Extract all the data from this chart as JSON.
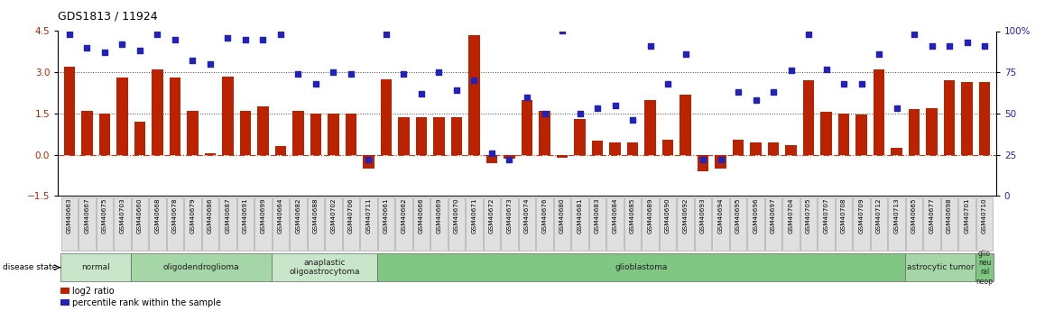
{
  "title": "GDS1813 / 11924",
  "samples": [
    "GSM40663",
    "GSM40667",
    "GSM40675",
    "GSM40703",
    "GSM40660",
    "GSM40668",
    "GSM40678",
    "GSM40679",
    "GSM40686",
    "GSM40687",
    "GSM40691",
    "GSM40699",
    "GSM40664",
    "GSM40682",
    "GSM40688",
    "GSM40702",
    "GSM40706",
    "GSM40711",
    "GSM40661",
    "GSM40662",
    "GSM40666",
    "GSM40669",
    "GSM40670",
    "GSM40671",
    "GSM40672",
    "GSM40673",
    "GSM40674",
    "GSM40676",
    "GSM40680",
    "GSM40681",
    "GSM40683",
    "GSM40684",
    "GSM40685",
    "GSM40689",
    "GSM40690",
    "GSM40692",
    "GSM40693",
    "GSM40694",
    "GSM40695",
    "GSM40696",
    "GSM40697",
    "GSM40704",
    "GSM40705",
    "GSM40707",
    "GSM40708",
    "GSM40709",
    "GSM40712",
    "GSM40713",
    "GSM40665",
    "GSM40677",
    "GSM40698",
    "GSM40701",
    "GSM40710"
  ],
  "log2_ratio": [
    3.2,
    1.6,
    1.5,
    2.8,
    1.2,
    3.1,
    2.8,
    1.6,
    0.05,
    2.85,
    1.6,
    1.75,
    0.3,
    1.6,
    1.5,
    1.5,
    1.5,
    -0.5,
    2.75,
    1.35,
    1.35,
    1.35,
    1.35,
    4.35,
    -0.3,
    -0.15,
    2.0,
    1.6,
    -0.1,
    1.3,
    0.5,
    0.45,
    0.45,
    2.0,
    0.55,
    2.2,
    -0.6,
    -0.5,
    0.55,
    0.45,
    0.45,
    0.35,
    2.7,
    1.55,
    1.5,
    1.45,
    3.1,
    0.25,
    1.65,
    1.7,
    2.7,
    2.65,
    2.65
  ],
  "percentile": [
    98,
    90,
    87,
    92,
    88,
    98,
    95,
    82,
    80,
    96,
    95,
    95,
    98,
    74,
    68,
    75,
    74,
    22,
    98,
    74,
    62,
    75,
    64,
    70,
    26,
    22,
    60,
    50,
    100,
    50,
    53,
    55,
    46,
    91,
    68,
    86,
    22,
    22,
    63,
    58,
    63,
    76,
    98,
    77,
    68,
    68,
    86,
    53,
    98,
    91,
    91,
    93,
    91
  ],
  "disease_groups": [
    {
      "label": "normal",
      "start": 0,
      "end": 4,
      "color": "#c8e6c9"
    },
    {
      "label": "oligodendroglioma",
      "start": 4,
      "end": 12,
      "color": "#a5d6a7"
    },
    {
      "label": "anaplastic\noligoastrocytoma",
      "start": 12,
      "end": 18,
      "color": "#c8e6c9"
    },
    {
      "label": "glioblastoma",
      "start": 18,
      "end": 48,
      "color": "#81c784"
    },
    {
      "label": "astrocytic tumor",
      "start": 48,
      "end": 52,
      "color": "#a5d6a7"
    },
    {
      "label": "glio\nneu\nral\nneop",
      "start": 52,
      "end": 53,
      "color": "#81c784"
    }
  ],
  "bar_color": "#bb2200",
  "dot_color": "#2222bb",
  "left_ylim": [
    -1.5,
    4.5
  ],
  "left_yticks": [
    -1.5,
    0.0,
    1.5,
    3.0,
    4.5
  ],
  "right_ylim": [
    0,
    100
  ],
  "right_yticks": [
    0,
    25,
    50,
    75,
    100
  ],
  "right_ticklabels": [
    "0",
    "25",
    "50",
    "75",
    "100%"
  ],
  "hline_zero_color": "#cc2200",
  "hline_other_color": "#444444",
  "legend_items": [
    {
      "label": "log2 ratio",
      "color": "#bb2200"
    },
    {
      "label": "percentile rank within the sample",
      "color": "#2222bb"
    }
  ]
}
